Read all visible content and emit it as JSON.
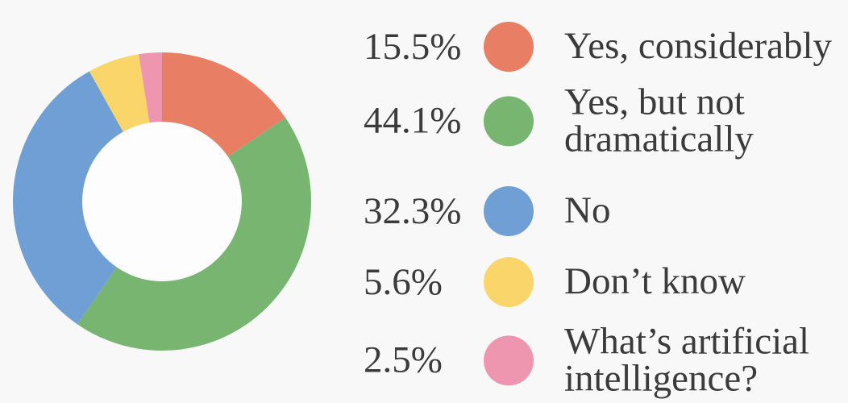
{
  "chart_data": {
    "type": "pie",
    "variant": "donut",
    "title": "",
    "legend_position": "right",
    "start_angle_deg": 0,
    "direction": "clockwise",
    "inner_radius_ratio": 0.535,
    "background_color": "#f8f8f9",
    "hole_color": "#fdfdfd",
    "text_color": "#3b3b3b",
    "slices": [
      {
        "label": "Yes, considerably",
        "value": 15.5,
        "pct_label": "15.5%",
        "color": "#E87E63"
      },
      {
        "label": "Yes, but not dramatically",
        "value": 44.1,
        "pct_label": "44.1%",
        "color": "#77B571"
      },
      {
        "label": "No",
        "value": 32.3,
        "pct_label": "32.3%",
        "color": "#6F9FD4"
      },
      {
        "label": "Don’t know",
        "value": 5.6,
        "pct_label": "5.6%",
        "color": "#FAD56A"
      },
      {
        "label": "What’s artificial intelligence?",
        "value": 2.5,
        "pct_label": "2.5%",
        "color": "#EE96B0"
      }
    ]
  }
}
